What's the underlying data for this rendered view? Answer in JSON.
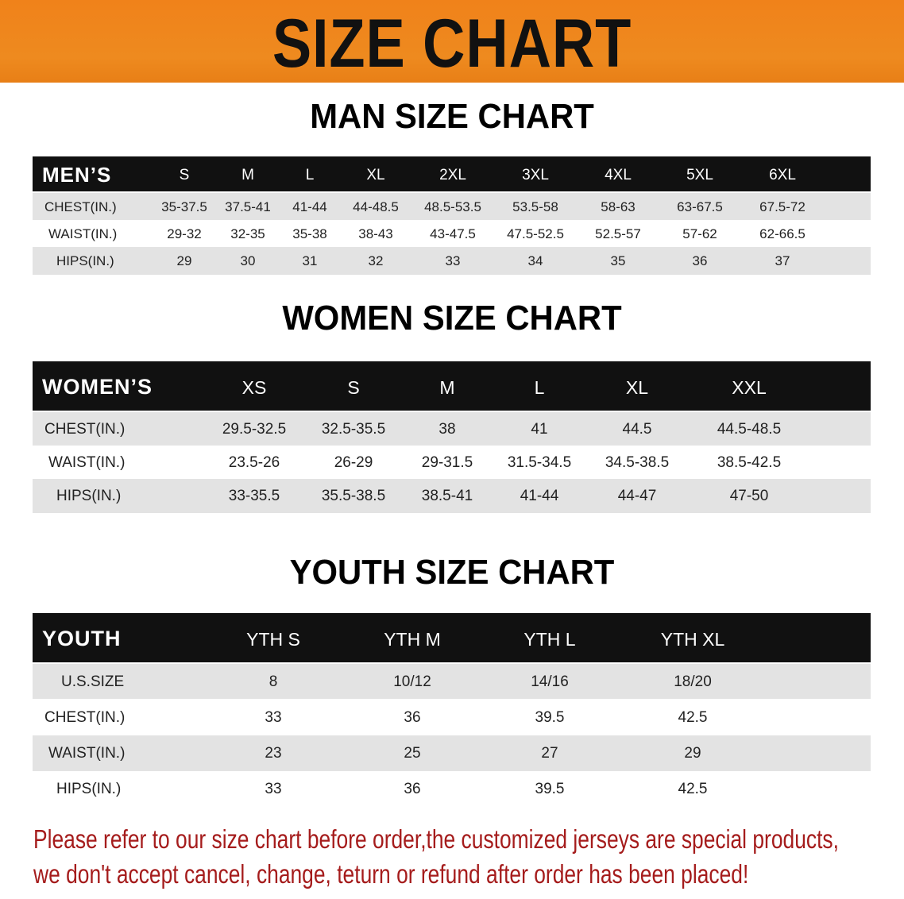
{
  "banner_title": "SIZE CHART",
  "men": {
    "title": "MAN SIZE CHART",
    "corner": "MEN’S",
    "sizes": [
      "S",
      "M",
      "L",
      "XL",
      "2XL",
      "3XL",
      "4XL",
      "5XL",
      "6XL"
    ],
    "rows": [
      {
        "label": "CHEST(IN.)",
        "values": [
          "35-37.5",
          "37.5-41",
          "41-44",
          "44-48.5",
          "48.5-53.5",
          "53.5-58",
          "58-63",
          "63-67.5",
          "67.5-72"
        ]
      },
      {
        "label": "WAIST(IN.)",
        "values": [
          "29-32",
          "32-35",
          "35-38",
          "38-43",
          "43-47.5",
          "47.5-52.5",
          "52.5-57",
          "57-62",
          "62-66.5"
        ]
      },
      {
        "label": "HIPS(IN.)",
        "values": [
          "29",
          "30",
          "31",
          "32",
          "33",
          "34",
          "35",
          "36",
          "37"
        ]
      }
    ]
  },
  "women": {
    "title": "WOMEN SIZE CHART",
    "corner": "WOMEN’S",
    "sizes": [
      "XS",
      "S",
      "M",
      "L",
      "XL",
      "XXL"
    ],
    "rows": [
      {
        "label": "CHEST(IN.)",
        "values": [
          "29.5-32.5",
          "32.5-35.5",
          "38",
          "41",
          "44.5",
          "44.5-48.5"
        ]
      },
      {
        "label": "WAIST(IN.)",
        "values": [
          "23.5-26",
          "26-29",
          "29-31.5",
          "31.5-34.5",
          "34.5-38.5",
          "38.5-42.5"
        ]
      },
      {
        "label": "HIPS(IN.)",
        "values": [
          "33-35.5",
          "35.5-38.5",
          "38.5-41",
          "41-44",
          "44-47",
          "47-50"
        ]
      }
    ]
  },
  "youth": {
    "title": "YOUTH SIZE CHART",
    "corner": "YOUTH",
    "sizes": [
      "YTH S",
      "YTH M",
      "YTH L",
      "YTH XL"
    ],
    "rows": [
      {
        "label": "U.S.SIZE",
        "values": [
          "8",
          "10/12",
          "14/16",
          "18/20"
        ]
      },
      {
        "label": "CHEST(IN.)",
        "values": [
          "33",
          "36",
          "39.5",
          "42.5"
        ]
      },
      {
        "label": "WAIST(IN.)",
        "values": [
          "23",
          "25",
          "27",
          "29"
        ]
      },
      {
        "label": "HIPS(IN.)",
        "values": [
          "33",
          "36",
          "39.5",
          "42.5"
        ]
      }
    ]
  },
  "notice": [
    "Please refer to our size chart before order,the customized jerseys are special products,",
    "we don't accept cancel, change, teturn or refund after order has been placed!"
  ],
  "colors": {
    "banner": "#ef841b",
    "header": "#111111",
    "row_alt": "#e3e3e3",
    "notice": "#a51c1c"
  }
}
